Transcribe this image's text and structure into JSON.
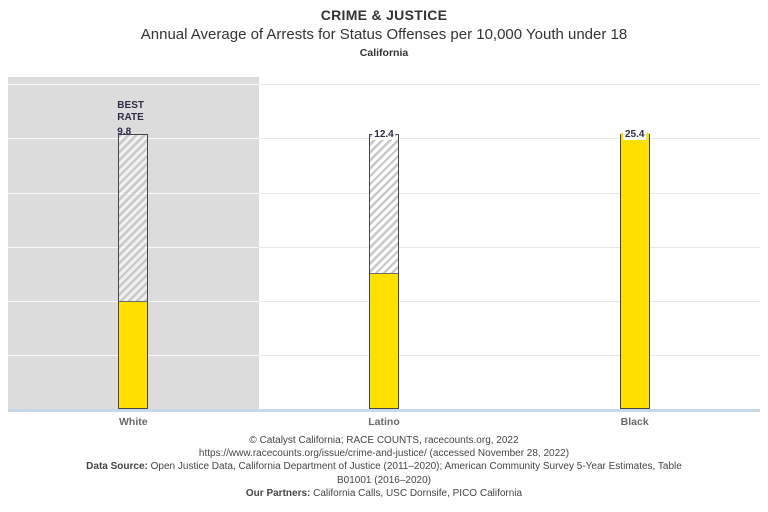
{
  "header": {
    "category": "CRIME & JUSTICE",
    "title": "Annual Average of Arrests for Status Offenses per 10,000 Youth under 18",
    "region": "California"
  },
  "chart_data": {
    "type": "bar",
    "title": "Annual Average of Arrests for Status Offenses per 10,000 Youth under 18",
    "issue_category": "CRIME & JUSTICE",
    "region": "California",
    "categories": [
      "White",
      "Latino",
      "Black"
    ],
    "values": [
      9.8,
      12.4,
      25.4
    ],
    "value_labels": [
      "9.8",
      "12.4",
      "25.4"
    ],
    "max_value": 25.4,
    "best_rate": {
      "category": "White",
      "value": 9.8,
      "label": "BEST RATE"
    },
    "highlighted_category": "White",
    "ylim": [
      0,
      30
    ],
    "gridlines": {
      "step": 5,
      "max": 30,
      "labels_visible": false
    },
    "legend": "none",
    "bar_semantics": "solid yellow height = group rate; hatched outline extends to the worst (highest) rate 25.4; White column highlighted gray as best rate",
    "colors": {
      "bar_fill": "#FFE000",
      "bar_outline": "#45454E",
      "hatch_stripe": "#C8C8C8",
      "hatch_gap": "rgba(255,255,255,0.55)",
      "fill_divider": "#6B6B6B",
      "value_text": "#2D2D49",
      "panel": "#DCDCDC",
      "gridline_main": "#E8E8E8",
      "gridline_on_panel": "rgba(255,255,255,0.8)",
      "baseline": "#C9D7EB",
      "axis_label": "#696969",
      "footer_text": "#454545",
      "header_text": "#333333"
    }
  },
  "footer": {
    "line1": "© Catalyst California; RACE COUNTS, racecounts.org, 2022",
    "line2": "https://www.racecounts.org/issue/crime-and-justice/ (accessed November 28, 2022)",
    "data_source_label": "Data Source:",
    "data_source_text": " Open Justice Data, California Department of Justice (2011–2020); American Community Survey 5-Year Estimates, Table",
    "data_source_text2": "B01001 (2016–2020)",
    "partners_label": "Our Partners:",
    "partners_text": " California Calls, USC Dornsife, PICO California"
  }
}
